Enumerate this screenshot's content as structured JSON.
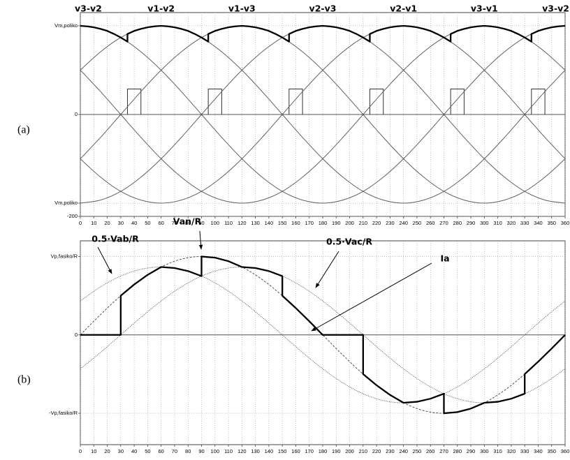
{
  "chart_data": [
    {
      "type": "line",
      "panel_label": "(a)",
      "segment_labels": [
        "v3-v2",
        "v1-v2",
        "v1-v3",
        "v2-v3",
        "v2-v1",
        "v3-v1",
        "v3-v2"
      ],
      "xlim": [
        0,
        360
      ],
      "xticks": [
        0,
        10,
        20,
        30,
        40,
        50,
        60,
        70,
        80,
        90,
        100,
        110,
        120,
        130,
        140,
        150,
        160,
        170,
        180,
        190,
        200,
        210,
        220,
        230,
        240,
        250,
        260,
        270,
        280,
        290,
        300,
        310,
        320,
        330,
        340,
        350,
        360
      ],
      "ylim": [
        -200,
        200
      ],
      "yticks": [
        {
          "value": 174,
          "label": "Vm,poliko"
        },
        0,
        {
          "value": -174,
          "label": "Vm,poliko"
        },
        -200
      ],
      "grid": true,
      "x": [
        0,
        15,
        30,
        45,
        60,
        75,
        90,
        105,
        120,
        135,
        150,
        165,
        180,
        195,
        210,
        225,
        240,
        255,
        270,
        285,
        300,
        315,
        330,
        345,
        360
      ],
      "series": [
        {
          "color": "#606060",
          "linestyle": "solid",
          "values": [
            174,
            168,
            151,
            123,
            87,
            45,
            0,
            -45,
            -87,
            -123,
            -151,
            -168,
            -174,
            -168,
            -151,
            -123,
            -87,
            -45,
            0,
            45,
            87,
            123,
            151,
            168,
            174
          ]
        },
        {
          "color": "#606060",
          "linestyle": "solid",
          "values": [
            87,
            123,
            151,
            168,
            174,
            168,
            151,
            123,
            87,
            45,
            0,
            -45,
            -87,
            -123,
            -151,
            -168,
            -174,
            -168,
            -151,
            -123,
            -87,
            -45,
            0,
            45,
            87
          ]
        },
        {
          "color": "#606060",
          "linestyle": "solid",
          "values": [
            -87,
            -45,
            0,
            45,
            87,
            123,
            151,
            168,
            174,
            168,
            151,
            123,
            87,
            45,
            0,
            -45,
            -87,
            -123,
            -151,
            -168,
            -174,
            -168,
            -151,
            -123,
            -87
          ]
        },
        {
          "color": "#606060",
          "linestyle": "solid",
          "values": [
            -174,
            -168,
            -151,
            -123,
            -87,
            -45,
            0,
            45,
            87,
            123,
            151,
            168,
            174,
            168,
            151,
            123,
            87,
            45,
            0,
            -45,
            -87,
            -123,
            -151,
            -168,
            -174
          ]
        },
        {
          "color": "#606060",
          "linestyle": "solid",
          "values": [
            -87,
            -123,
            -151,
            -168,
            -174,
            -168,
            -151,
            -123,
            -87,
            -45,
            0,
            45,
            87,
            123,
            151,
            168,
            174,
            168,
            151,
            123,
            87,
            45,
            0,
            -45,
            -87
          ]
        },
        {
          "color": "#606060",
          "linestyle": "solid",
          "values": [
            87,
            45,
            0,
            -45,
            -87,
            -123,
            -151,
            -168,
            -174,
            -168,
            -151,
            -123,
            -87,
            -45,
            0,
            45,
            87,
            123,
            151,
            168,
            174,
            168,
            151,
            123,
            87
          ]
        },
        {
          "color": "#000000",
          "linestyle": "bold",
          "x": [
            0,
            5,
            10,
            15,
            20,
            25,
            30,
            35,
            35,
            40,
            45,
            50,
            55,
            60,
            65,
            70,
            75,
            80,
            85,
            90,
            95,
            95,
            100,
            105,
            110,
            115,
            120,
            125,
            130,
            135,
            140,
            145,
            150,
            155,
            155,
            160,
            165,
            170,
            175,
            180,
            185,
            190,
            195,
            200,
            205,
            210,
            215,
            215,
            220,
            225,
            230,
            235,
            240,
            245,
            250,
            255,
            260,
            265,
            270,
            275,
            275,
            280,
            285,
            290,
            295,
            300,
            305,
            310,
            315,
            320,
            325,
            330,
            335,
            335,
            340,
            345,
            350,
            355,
            360
          ],
          "values": [
            174,
            173,
            171,
            168,
            164,
            158,
            151,
            143,
            158,
            164,
            168,
            171,
            173,
            174,
            173,
            171,
            168,
            164,
            158,
            151,
            143,
            158,
            164,
            168,
            171,
            173,
            174,
            173,
            171,
            168,
            164,
            158,
            151,
            143,
            158,
            164,
            168,
            171,
            173,
            174,
            173,
            171,
            168,
            164,
            158,
            151,
            143,
            158,
            164,
            168,
            171,
            173,
            174,
            173,
            171,
            168,
            164,
            158,
            151,
            143,
            158,
            164,
            168,
            171,
            173,
            174,
            173,
            171,
            168,
            164,
            158,
            151,
            143,
            158,
            164,
            168,
            171,
            173,
            174
          ]
        }
      ],
      "pulses": {
        "x": [
          [
            35,
            45
          ],
          [
            95,
            105
          ],
          [
            155,
            165
          ],
          [
            215,
            225
          ],
          [
            275,
            285
          ],
          [
            335,
            345
          ]
        ],
        "height": 50,
        "color": "#333333"
      }
    },
    {
      "type": "line",
      "panel_label": "(b)",
      "annotations": [
        "0.5·Vab/R",
        "Van/R",
        "0.5·Vac/R",
        "Ia"
      ],
      "xlim": [
        0,
        360
      ],
      "xticks": [
        0,
        10,
        20,
        30,
        40,
        50,
        60,
        70,
        80,
        90,
        100,
        110,
        120,
        130,
        140,
        150,
        160,
        170,
        180,
        190,
        200,
        210,
        220,
        230,
        240,
        250,
        260,
        270,
        280,
        290,
        300,
        310,
        320,
        330,
        340,
        350,
        360
      ],
      "ylim": [
        -1.4,
        1.2
      ],
      "yticks": [
        {
          "value": 1,
          "label": "Vp,fasiko/R"
        },
        0,
        {
          "value": -1,
          "label": "-Vp,fasiko/R"
        }
      ],
      "grid": true,
      "x": [
        0,
        15,
        30,
        45,
        60,
        75,
        90,
        105,
        120,
        135,
        150,
        165,
        180,
        195,
        210,
        225,
        240,
        255,
        270,
        285,
        300,
        315,
        330,
        345,
        360
      ],
      "series": [
        {
          "color": "#404040",
          "linestyle": "dashed",
          "values": [
            0,
            0.259,
            0.5,
            0.707,
            0.866,
            0.966,
            1,
            0.966,
            0.866,
            0.707,
            0.5,
            0.259,
            0,
            -0.259,
            -0.5,
            -0.707,
            -0.866,
            -0.966,
            -1,
            -0.966,
            -0.866,
            -0.707,
            -0.5,
            -0.259,
            0
          ]
        },
        {
          "color": "#404040",
          "linestyle": "dotted",
          "values": [
            0.433,
            0.612,
            0.75,
            0.837,
            0.866,
            0.837,
            0.75,
            0.612,
            0.433,
            0.224,
            0,
            -0.224,
            -0.433,
            -0.612,
            -0.75,
            -0.837,
            -0.866,
            -0.837,
            -0.75,
            -0.612,
            -0.433,
            -0.224,
            0,
            0.224,
            0.433
          ]
        },
        {
          "color": "#404040",
          "linestyle": "dotted",
          "values": [
            -0.433,
            -0.224,
            0,
            0.224,
            0.433,
            0.612,
            0.75,
            0.837,
            0.866,
            0.837,
            0.75,
            0.612,
            0.433,
            0.224,
            0,
            -0.224,
            -0.433,
            -0.612,
            -0.75,
            -0.837,
            -0.866,
            -0.837,
            -0.75,
            -0.612,
            -0.433
          ]
        },
        {
          "color": "#000000",
          "linestyle": "bold",
          "x": [
            0,
            10,
            20,
            30,
            30,
            40,
            50,
            60,
            70,
            80,
            90,
            90,
            100,
            110,
            120,
            130,
            140,
            150,
            150,
            160,
            170,
            180,
            190,
            200,
            210,
            210,
            220,
            230,
            240,
            250,
            260,
            270,
            270,
            280,
            290,
            300,
            310,
            320,
            330,
            330,
            340,
            350,
            360
          ],
          "values": [
            0,
            0,
            0,
            0,
            0.5,
            0.643,
            0.766,
            0.866,
            0.853,
            0.814,
            0.75,
            1,
            0.985,
            0.94,
            0.866,
            0.853,
            0.814,
            0.75,
            0.5,
            0.342,
            0.174,
            0,
            0,
            0,
            0,
            -0.5,
            -0.643,
            -0.766,
            -0.866,
            -0.853,
            -0.814,
            -0.75,
            -1,
            -0.985,
            -0.94,
            -0.866,
            -0.853,
            -0.814,
            -0.75,
            -0.5,
            -0.342,
            -0.174,
            0
          ]
        }
      ]
    }
  ]
}
